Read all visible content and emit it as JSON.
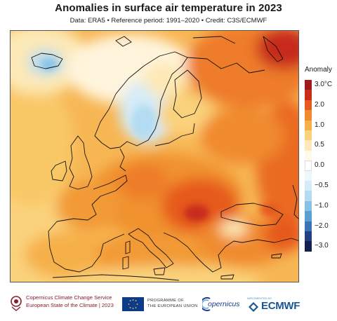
{
  "header": {
    "title": "Anomalies in surface air temperature in 2023",
    "subtitle": "Data: ERA5 • Reference period: 1991–2020 • Credit: C3S/ECMWF"
  },
  "legend": {
    "title": "Anomaly",
    "bins": [
      {
        "label": "3.0°C",
        "color": "#9d1b1b"
      },
      {
        "label": "",
        "color": "#c72c1c"
      },
      {
        "label": "2.0",
        "color": "#e65a1e"
      },
      {
        "label": "",
        "color": "#f08a2e"
      },
      {
        "label": "1.0",
        "color": "#f6b04a"
      },
      {
        "label": "",
        "color": "#fad27c"
      },
      {
        "label": "0.5",
        "color": "#fde9b6"
      },
      {
        "label": "",
        "color": "#fff9ea"
      },
      {
        "label": "0.0",
        "color": "#ffffff"
      },
      {
        "label": "",
        "color": "#eef7fc"
      },
      {
        "label": "−0.5",
        "color": "#d4ecf8"
      },
      {
        "label": "",
        "color": "#b3dbf2"
      },
      {
        "label": "−1.0",
        "color": "#86c1e6"
      },
      {
        "label": "",
        "color": "#5a9fd2"
      },
      {
        "label": "−2.0",
        "color": "#3a73b6"
      },
      {
        "label": "",
        "color": "#233f84"
      },
      {
        "label": "−3.0",
        "color": "#14204e"
      }
    ]
  },
  "footer": {
    "c3s_line1": "Copernicus Climate Change Service",
    "c3s_line2": "European State of the Climate | 2023",
    "eu_line1": "PROGRAMME OF",
    "eu_line2": "THE EUROPEAN UNION",
    "copernicus": "opernicus",
    "ecmwf_small": "IMPLEMENTED BY",
    "ecmwf": "ECMWF"
  },
  "colors": {
    "accent_c3s": "#8a1b2d",
    "eu_blue": "#0d3b8c",
    "ecmwf_blue": "#1c5596"
  },
  "icons": [
    "c3s-logo-icon",
    "eu-flag-icon",
    "copernicus-logo-icon",
    "ecmwf-logo-icon"
  ]
}
